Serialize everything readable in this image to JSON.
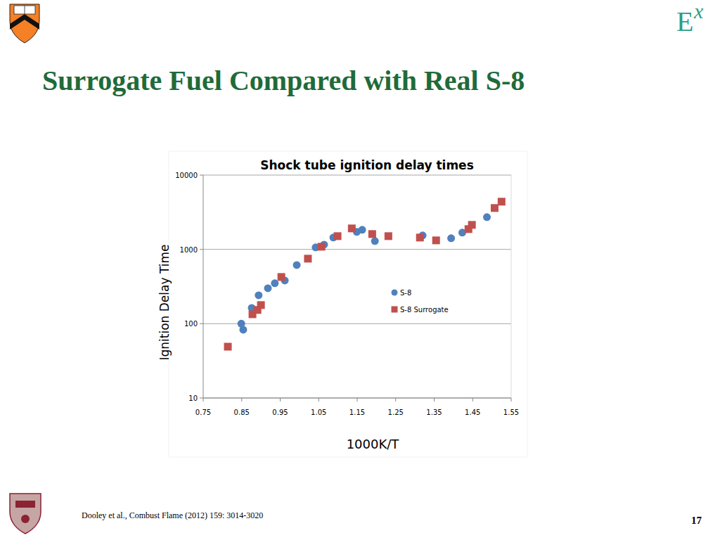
{
  "header": {
    "title": "Surrogate Fuel Compared with Real S-8",
    "logo_text": "E",
    "logo_superscript": "x"
  },
  "chart_data": {
    "type": "scatter",
    "title": "Shock tube ignition delay times",
    "x_label": "1000K/T",
    "y_label": "Ignition Delay Time",
    "log": "y",
    "grid": true,
    "legend": "right",
    "xlim": [
      0.75,
      1.55
    ],
    "xticks": [
      0.75,
      0.85,
      0.95,
      1.05,
      1.15,
      1.25,
      1.35,
      1.45,
      1.55
    ],
    "ylim": [
      10,
      10000
    ],
    "yticks": [
      10,
      100,
      1000,
      10000
    ],
    "series": [
      {
        "name": "S-8",
        "color": "#4f81bd",
        "marker": "circle",
        "x": [
          0.849,
          0.854,
          0.876,
          0.894,
          0.918,
          0.936,
          0.962,
          0.993,
          1.042,
          1.064,
          1.088,
          1.149,
          1.163,
          1.196,
          1.32,
          1.394,
          1.423,
          1.487
        ],
        "values": [
          100,
          83,
          163,
          241,
          300,
          350,
          381,
          616,
          1063,
          1159,
          1442,
          1718,
          1833,
          1294,
          1540,
          1412,
          1680,
          2715
        ]
      },
      {
        "name": "S-8 Surrogate",
        "color": "#c0504d",
        "marker": "square",
        "x": [
          0.814,
          0.878,
          0.891,
          0.9,
          0.953,
          1.022,
          1.057,
          1.099,
          1.136,
          1.189,
          1.231,
          1.313,
          1.355,
          1.439,
          1.448,
          1.507,
          1.525
        ],
        "values": [
          49,
          134,
          153,
          178,
          425,
          750,
          1086,
          1507,
          1915,
          1608,
          1507,
          1442,
          1322,
          1874,
          2136,
          3605,
          4385
        ]
      }
    ]
  },
  "footer": {
    "citation": "Dooley et al., Combust Flame (2012) 159: 3014-3020",
    "page": "17"
  }
}
